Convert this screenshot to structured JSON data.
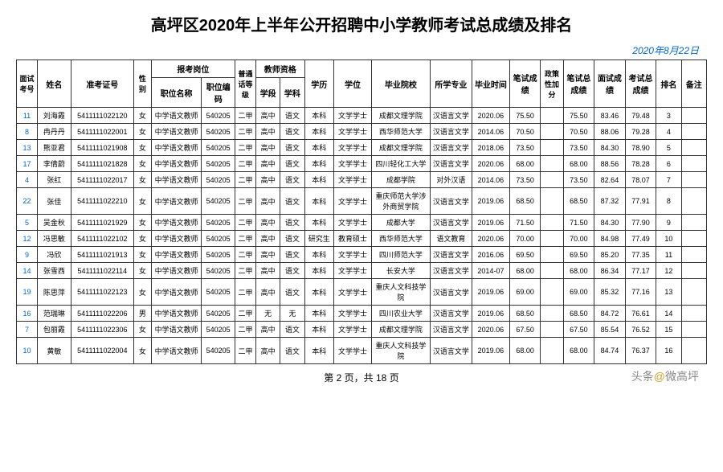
{
  "title": "高坪区2020年上半年公开招聘中小学教师考试总成绩及排名",
  "date": "2020年8月22日",
  "pager_prefix": "第 ",
  "pager_page": "2",
  "pager_mid": " 页，共 ",
  "pager_total": "18",
  "pager_suffix": " 页",
  "watermark_left": "头条",
  "watermark_at": "@",
  "watermark_right": "微高坪",
  "headers": {
    "h1": "面试考号",
    "h2": "姓名",
    "h3": "准考证号",
    "h4": "性别",
    "h5": "报考岗位",
    "h5a": "职位名称",
    "h5b": "职位编码",
    "h6": "普通话等级",
    "h7": "教师资格",
    "h7a": "学段",
    "h7b": "学科",
    "h8": "学历",
    "h9": "学位",
    "h10": "毕业院校",
    "h11": "所学专业",
    "h12": "毕业时间",
    "h13": "笔试成绩",
    "h14": "政策性加分",
    "h15": "笔试总成绩",
    "h16": "面试成绩",
    "h17": "考试总成绩",
    "h18": "排名",
    "h19": "备注"
  },
  "rows": [
    {
      "idx": "11",
      "name": "刘海霞",
      "no": "5411111022120",
      "sex": "女",
      "pos": "中学语文教师",
      "code": "540205",
      "pth": "二甲",
      "seg": "高中",
      "sub": "语文",
      "edu": "本科",
      "deg": "文学学士",
      "school": "成都文理学院",
      "major": "汉语言文学",
      "grad": "2020.06",
      "w": "75.50",
      "add": "",
      "wt": "75.50",
      "iv": "83.46",
      "tot": "79.48",
      "rank": "3",
      "note": ""
    },
    {
      "idx": "8",
      "name": "冉丹丹",
      "no": "5411111022001",
      "sex": "女",
      "pos": "中学语文教师",
      "code": "540205",
      "pth": "二甲",
      "seg": "高中",
      "sub": "语文",
      "edu": "本科",
      "deg": "文学学士",
      "school": "西华师范大学",
      "major": "汉语言文学",
      "grad": "2014.06",
      "w": "70.50",
      "add": "",
      "wt": "70.50",
      "iv": "88.06",
      "tot": "79.28",
      "rank": "4",
      "note": ""
    },
    {
      "idx": "13",
      "name": "熊亚君",
      "no": "5411111021908",
      "sex": "女",
      "pos": "中学语文教师",
      "code": "540205",
      "pth": "二甲",
      "seg": "高中",
      "sub": "语文",
      "edu": "本科",
      "deg": "文学学士",
      "school": "成都文理学院",
      "major": "汉语言文学",
      "grad": "2018.06",
      "w": "73.50",
      "add": "",
      "wt": "73.50",
      "iv": "84.30",
      "tot": "78.90",
      "rank": "5",
      "note": ""
    },
    {
      "idx": "17",
      "name": "李倩蔚",
      "no": "5411111021828",
      "sex": "女",
      "pos": "中学语文教师",
      "code": "540205",
      "pth": "二甲",
      "seg": "高中",
      "sub": "语文",
      "edu": "本科",
      "deg": "文学学士",
      "school": "四川轻化工大学",
      "major": "汉语言文学",
      "grad": "2020.06",
      "w": "68.00",
      "add": "",
      "wt": "68.00",
      "iv": "88.56",
      "tot": "78.28",
      "rank": "6",
      "note": ""
    },
    {
      "idx": "4",
      "name": "张红",
      "no": "5411111022017",
      "sex": "女",
      "pos": "中学语文教师",
      "code": "540205",
      "pth": "二甲",
      "seg": "高中",
      "sub": "语文",
      "edu": "本科",
      "deg": "文学学士",
      "school": "成都学院",
      "major": "对外汉语",
      "grad": "2014.06",
      "w": "73.50",
      "add": "",
      "wt": "73.50",
      "iv": "82.64",
      "tot": "78.07",
      "rank": "7",
      "note": ""
    },
    {
      "idx": "22",
      "name": "张佳",
      "no": "5411111022210",
      "sex": "女",
      "pos": "中学语文教师",
      "code": "540205",
      "pth": "二甲",
      "seg": "高中",
      "sub": "语文",
      "edu": "本科",
      "deg": "文学学士",
      "school": "重庆师范大学涉外商贸学院",
      "major": "汉语言文学",
      "grad": "2019.06",
      "w": "68.50",
      "add": "",
      "wt": "68.50",
      "iv": "87.32",
      "tot": "77.91",
      "rank": "8",
      "note": ""
    },
    {
      "idx": "5",
      "name": "吴金秋",
      "no": "5411111021929",
      "sex": "女",
      "pos": "中学语文教师",
      "code": "540205",
      "pth": "二甲",
      "seg": "高中",
      "sub": "语文",
      "edu": "本科",
      "deg": "文学学士",
      "school": "成都大学",
      "major": "汉语言文学",
      "grad": "2019.06",
      "w": "71.50",
      "add": "",
      "wt": "71.50",
      "iv": "84.30",
      "tot": "77.90",
      "rank": "9",
      "note": ""
    },
    {
      "idx": "12",
      "name": "冯思敏",
      "no": "5411111022102",
      "sex": "女",
      "pos": "中学语文教师",
      "code": "540205",
      "pth": "二甲",
      "seg": "高中",
      "sub": "语文",
      "edu": "研究生",
      "deg": "教育硕士",
      "school": "西华师范大学",
      "major": "语文教育",
      "grad": "2020.06",
      "w": "70.00",
      "add": "",
      "wt": "70.00",
      "iv": "84.98",
      "tot": "77.49",
      "rank": "10",
      "note": ""
    },
    {
      "idx": "9",
      "name": "冯欣",
      "no": "5411111021913",
      "sex": "女",
      "pos": "中学语文教师",
      "code": "540205",
      "pth": "二甲",
      "seg": "高中",
      "sub": "语文",
      "edu": "本科",
      "deg": "文学学士",
      "school": "四川师范大学",
      "major": "汉语言文学",
      "grad": "2016.06",
      "w": "69.50",
      "add": "",
      "wt": "69.50",
      "iv": "85.20",
      "tot": "77.35",
      "rank": "11",
      "note": ""
    },
    {
      "idx": "14",
      "name": "张雪西",
      "no": "5411111022114",
      "sex": "女",
      "pos": "中学语文教师",
      "code": "540205",
      "pth": "二甲",
      "seg": "高中",
      "sub": "语文",
      "edu": "本科",
      "deg": "文学学士",
      "school": "长安大学",
      "major": "汉语言文学",
      "grad": "2014-07",
      "w": "68.00",
      "add": "",
      "wt": "68.00",
      "iv": "86.34",
      "tot": "77.17",
      "rank": "12",
      "note": ""
    },
    {
      "idx": "19",
      "name": "陈思萍",
      "no": "5411111022123",
      "sex": "女",
      "pos": "中学语文教师",
      "code": "540205",
      "pth": "二甲",
      "seg": "高中",
      "sub": "语文",
      "edu": "本科",
      "deg": "文学学士",
      "school": "重庆人文科技学院",
      "major": "汉语言文学",
      "grad": "2019.06",
      "w": "69.00",
      "add": "",
      "wt": "69.00",
      "iv": "85.32",
      "tot": "77.16",
      "rank": "13",
      "note": ""
    },
    {
      "idx": "16",
      "name": "范瑞琳",
      "no": "5411111022206",
      "sex": "男",
      "pos": "中学语文教师",
      "code": "540205",
      "pth": "二甲",
      "seg": "无",
      "sub": "无",
      "edu": "本科",
      "deg": "文学学士",
      "school": "四川农业大学",
      "major": "汉语言文学",
      "grad": "2019.06",
      "w": "68.50",
      "add": "",
      "wt": "68.50",
      "iv": "84.72",
      "tot": "76.61",
      "rank": "14",
      "note": ""
    },
    {
      "idx": "7",
      "name": "包丽霞",
      "no": "5411111022306",
      "sex": "女",
      "pos": "中学语文教师",
      "code": "540205",
      "pth": "二甲",
      "seg": "高中",
      "sub": "语文",
      "edu": "本科",
      "deg": "文学学士",
      "school": "成都文理学院",
      "major": "汉语言文学",
      "grad": "2020.06",
      "w": "67.50",
      "add": "",
      "wt": "67.50",
      "iv": "85.54",
      "tot": "76.52",
      "rank": "15",
      "note": ""
    },
    {
      "idx": "10",
      "name": "黄敏",
      "no": "5411111022004",
      "sex": "女",
      "pos": "中学语文教师",
      "code": "540205",
      "pth": "二甲",
      "seg": "高中",
      "sub": "语文",
      "edu": "本科",
      "deg": "文学学士",
      "school": "重庆人文科技学院",
      "major": "汉语言文学",
      "grad": "2019.06",
      "w": "68.00",
      "add": "",
      "wt": "68.00",
      "iv": "84.74",
      "tot": "76.37",
      "rank": "16",
      "note": ""
    }
  ]
}
